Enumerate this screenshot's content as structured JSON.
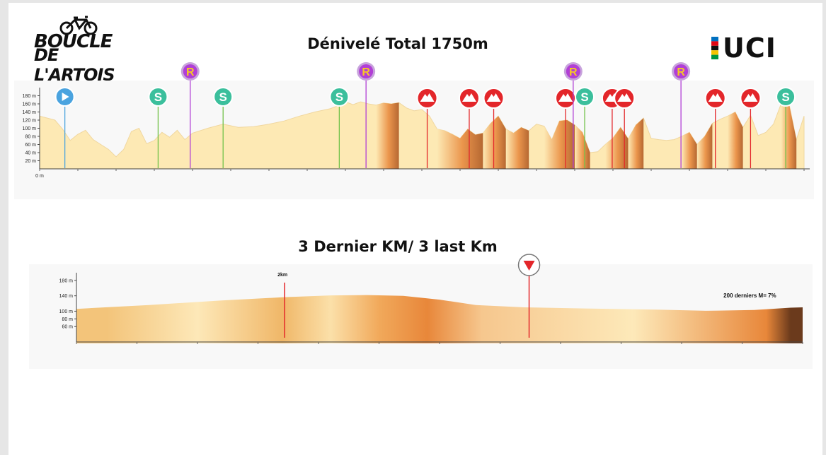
{
  "logos": {
    "left_line1": "BOUCLE",
    "left_line2": "DE L'ARTOIS",
    "right": "UCI",
    "uci_colors": [
      "#0070c0",
      "#e30613",
      "#111111",
      "#f5c400",
      "#009640"
    ]
  },
  "titles": {
    "profile": "Dénivelé Total 1750m",
    "last_km": "3 Dernier KM/ 3 last Km"
  },
  "colors": {
    "profile_fill": "#fde9b4",
    "climb": "#e8873a",
    "climb_dark": "#a9511b",
    "start_marker": "#4aa3df",
    "sprint_marker": "#3bbf9c",
    "sprint_line": "#73c24a",
    "ravito_marker": "#b13fd6",
    "ravito_ring": "#c8a4dc",
    "ravito_letter": "#f6c823",
    "climb_marker": "#e3262a",
    "climb_line": "#e3262a"
  },
  "marker_labels": {
    "sprint": "S",
    "ravito": "R"
  },
  "chart_data": [
    {
      "type": "area",
      "title": "Dénivelé Total 1750m",
      "ylim": [
        0,
        200
      ],
      "yticks": [
        20,
        40,
        60,
        80,
        100,
        120,
        140,
        160,
        180
      ],
      "ytick_labels": [
        "20 m",
        "40 m",
        "60 m",
        "80 m",
        "100 m",
        "120 m",
        "140 m",
        "160 m",
        "180 m"
      ],
      "xstart_label": "0 m",
      "xlim": [
        0,
        100
      ],
      "profile": [
        [
          0,
          130
        ],
        [
          2,
          120
        ],
        [
          3,
          98
        ],
        [
          4,
          70
        ],
        [
          5,
          85
        ],
        [
          6,
          95
        ],
        [
          7,
          72
        ],
        [
          8,
          60
        ],
        [
          9,
          48
        ],
        [
          10,
          30
        ],
        [
          11,
          48
        ],
        [
          12,
          92
        ],
        [
          13,
          100
        ],
        [
          14,
          62
        ],
        [
          15,
          70
        ],
        [
          16,
          90
        ],
        [
          17,
          78
        ],
        [
          18,
          95
        ],
        [
          19,
          72
        ],
        [
          20,
          88
        ],
        [
          22,
          100
        ],
        [
          24,
          110
        ],
        [
          26,
          102
        ],
        [
          28,
          104
        ],
        [
          30,
          110
        ],
        [
          32,
          118
        ],
        [
          34,
          130
        ],
        [
          36,
          140
        ],
        [
          38,
          148
        ],
        [
          39,
          155
        ],
        [
          40,
          165
        ],
        [
          41,
          158
        ],
        [
          42,
          165
        ],
        [
          43,
          160
        ],
        [
          44,
          157
        ],
        [
          45,
          162
        ],
        [
          46,
          160
        ],
        [
          47,
          163
        ],
        [
          48,
          150
        ],
        [
          49,
          143
        ],
        [
          50,
          146
        ],
        [
          51,
          130
        ],
        [
          52,
          98
        ],
        [
          53,
          94
        ],
        [
          54,
          85
        ],
        [
          55,
          75
        ],
        [
          56,
          98
        ],
        [
          57,
          84
        ],
        [
          58,
          88
        ],
        [
          59,
          112
        ],
        [
          60,
          130
        ],
        [
          61,
          98
        ],
        [
          62,
          88
        ],
        [
          63,
          102
        ],
        [
          64,
          94
        ],
        [
          65,
          110
        ],
        [
          66,
          105
        ],
        [
          67,
          72
        ],
        [
          68,
          118
        ],
        [
          69,
          120
        ],
        [
          70,
          108
        ],
        [
          71,
          90
        ],
        [
          72,
          40
        ],
        [
          73,
          42
        ],
        [
          74,
          60
        ],
        [
          75,
          76
        ],
        [
          76,
          102
        ],
        [
          77,
          74
        ],
        [
          78,
          108
        ],
        [
          79,
          125
        ],
        [
          80,
          75
        ],
        [
          81,
          72
        ],
        [
          82,
          70
        ],
        [
          83,
          72
        ],
        [
          84,
          80
        ],
        [
          85,
          90
        ],
        [
          86,
          60
        ],
        [
          87,
          80
        ],
        [
          88,
          112
        ],
        [
          89,
          122
        ],
        [
          90,
          130
        ],
        [
          91,
          140
        ],
        [
          92,
          102
        ],
        [
          93,
          132
        ],
        [
          94,
          82
        ],
        [
          95,
          90
        ],
        [
          96,
          110
        ],
        [
          97,
          160
        ],
        [
          98,
          163
        ],
        [
          99,
          72
        ],
        [
          100,
          130
        ]
      ],
      "climbs": [
        [
          44,
          47
        ],
        [
          52,
          58
        ],
        [
          58,
          61
        ],
        [
          61,
          64
        ],
        [
          66,
          70
        ],
        [
          70,
          72
        ],
        [
          74,
          77
        ],
        [
          77,
          79
        ],
        [
          84,
          86
        ],
        [
          86,
          88
        ],
        [
          90,
          92
        ],
        [
          97,
          99
        ]
      ],
      "markers": [
        {
          "type": "start",
          "x": 3.3
        },
        {
          "type": "sprint",
          "x": 15.5
        },
        {
          "type": "ravito",
          "x": 19.7
        },
        {
          "type": "sprint",
          "x": 24.0
        },
        {
          "type": "sprint",
          "x": 39.2
        },
        {
          "type": "ravito",
          "x": 42.7
        },
        {
          "type": "climb",
          "x": 50.7
        },
        {
          "type": "climb",
          "x": 56.2
        },
        {
          "type": "climb",
          "x": 59.4
        },
        {
          "type": "climb",
          "x": 68.8
        },
        {
          "type": "ravito",
          "x": 69.8
        },
        {
          "type": "sprint",
          "x": 71.3
        },
        {
          "type": "climb",
          "x": 74.9
        },
        {
          "type": "climb",
          "x": 76.5
        },
        {
          "type": "ravito",
          "x": 83.9
        },
        {
          "type": "climb",
          "x": 88.4
        },
        {
          "type": "climb",
          "x": 93.0
        },
        {
          "type": "sprint",
          "x": 97.6
        }
      ]
    },
    {
      "type": "area",
      "title": "3 Dernier KM/ 3 last Km",
      "ylim": [
        20,
        200
      ],
      "yticks": [
        60,
        80,
        100,
        140,
        180
      ],
      "ytick_labels": [
        "60 m",
        "80 m",
        "100 m",
        "140 m",
        "180 m"
      ],
      "xlim": [
        0,
        3
      ],
      "profile": [
        [
          0,
          106
        ],
        [
          0.3,
          116
        ],
        [
          0.6,
          128
        ],
        [
          0.85,
          136
        ],
        [
          1.05,
          141
        ],
        [
          1.2,
          142
        ],
        [
          1.35,
          140
        ],
        [
          1.5,
          130
        ],
        [
          1.65,
          116
        ],
        [
          1.85,
          110
        ],
        [
          2.1,
          107
        ],
        [
          2.4,
          104
        ],
        [
          2.6,
          101
        ],
        [
          2.8,
          103
        ],
        [
          2.95,
          109
        ],
        [
          3.0,
          110
        ]
      ],
      "colored_sections": [
        {
          "from": 0.0,
          "to": 0.25,
          "color": "#f3c47a"
        },
        {
          "from": 0.25,
          "to": 0.75,
          "color": "#fde8b8"
        },
        {
          "from": 0.75,
          "to": 0.95,
          "color": "#f0b768"
        },
        {
          "from": 0.95,
          "to": 1.15,
          "color": "#fbe0a9"
        },
        {
          "from": 1.15,
          "to": 1.35,
          "color": "#f1a95b"
        },
        {
          "from": 1.35,
          "to": 1.55,
          "color": "#e8873a"
        },
        {
          "from": 1.55,
          "to": 1.8,
          "color": "#f6c78e"
        },
        {
          "from": 1.8,
          "to": 2.8,
          "color": "#fde9b9"
        },
        {
          "from": 2.8,
          "to": 2.9,
          "color": "#e8873a"
        },
        {
          "from": 2.9,
          "to": 3.0,
          "color": "#6b3a1c"
        }
      ],
      "annotations": [
        {
          "x": 0.86,
          "label": "2km"
        },
        {
          "x": 1.87,
          "label": "",
          "marker": "flamme-rouge"
        },
        {
          "x": 2.73,
          "label": "200 derniers M= 7%"
        }
      ]
    }
  ]
}
